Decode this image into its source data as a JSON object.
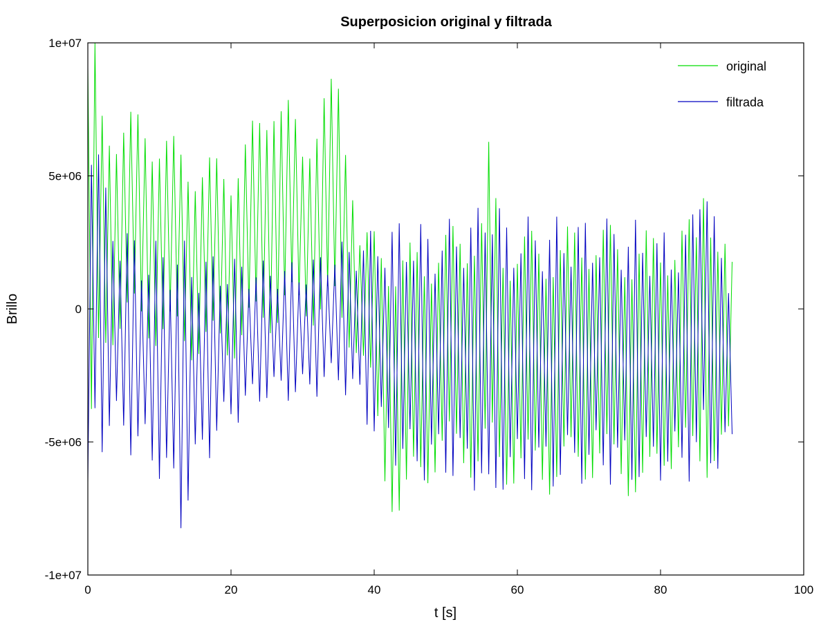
{
  "chart_data": {
    "type": "line",
    "title": "Superposicion original y filtrada",
    "xlabel": "t [s]",
    "ylabel": "Brillo",
    "xlim": [
      0,
      100
    ],
    "ylim": [
      -10000000,
      10000000
    ],
    "x_ticks": [
      0,
      20,
      40,
      60,
      80,
      100
    ],
    "x_tick_labels": [
      "0",
      "20",
      "40",
      "60",
      "80",
      "100"
    ],
    "y_ticks": [
      -10000000,
      -5000000,
      0,
      5000000,
      10000000
    ],
    "y_tick_labels": [
      "-1e+07",
      "-5e+06",
      "0",
      "5e+06",
      "1e+07"
    ],
    "grid": false,
    "legend_position": "top-right",
    "x_sampling": {
      "start": 0,
      "step": 0.5,
      "end": 90
    },
    "series": [
      {
        "name": "original",
        "color": "#00dd00",
        "envelope_low": [
          [
            0,
            -10000000
          ],
          [
            1,
            -4000000
          ],
          [
            2,
            -2500000
          ],
          [
            3,
            -1500000
          ],
          [
            5,
            -1000000
          ],
          [
            10,
            -1500000
          ],
          [
            15,
            -2000000
          ],
          [
            20,
            -2000000
          ],
          [
            25,
            -1000000
          ],
          [
            30,
            -500000
          ],
          [
            35,
            -1000000
          ],
          [
            38,
            -2000000
          ],
          [
            40,
            -4000000
          ],
          [
            41,
            -6500000
          ],
          [
            44,
            -8800000
          ],
          [
            46,
            -7000000
          ],
          [
            50,
            -6000000
          ],
          [
            55,
            -6500000
          ],
          [
            60,
            -6800000
          ],
          [
            65,
            -7000000
          ],
          [
            70,
            -6500000
          ],
          [
            75,
            -6800000
          ],
          [
            78,
            -8200000
          ],
          [
            80,
            -6000000
          ],
          [
            85,
            -6500000
          ],
          [
            90,
            -6000000
          ]
        ],
        "envelope_high": [
          [
            0,
            10000000
          ],
          [
            1,
            10000000
          ],
          [
            2,
            8000000
          ],
          [
            4,
            7500000
          ],
          [
            8,
            7500000
          ],
          [
            12,
            6500000
          ],
          [
            16,
            5800000
          ],
          [
            20,
            5800000
          ],
          [
            24,
            7500000
          ],
          [
            26,
            9000000
          ],
          [
            28,
            8000000
          ],
          [
            30,
            6500000
          ],
          [
            33,
            8500000
          ],
          [
            35,
            8800000
          ],
          [
            37,
            5500000
          ],
          [
            38,
            3000000
          ],
          [
            40,
            3000000
          ],
          [
            45,
            2500000
          ],
          [
            50,
            3000000
          ],
          [
            55,
            4000000
          ],
          [
            56,
            6300000
          ],
          [
            58,
            3000000
          ],
          [
            62,
            3000000
          ],
          [
            66,
            3000000
          ],
          [
            70,
            3500000
          ],
          [
            75,
            3000000
          ],
          [
            80,
            3000000
          ],
          [
            85,
            3500000
          ],
          [
            86,
            6500000
          ],
          [
            88,
            3000000
          ],
          [
            90,
            2000000
          ]
        ]
      },
      {
        "name": "filtrada",
        "color": "#0000c0",
        "envelope_low": [
          [
            0,
            -10000000
          ],
          [
            0.5,
            -10000000
          ],
          [
            1,
            -6000000
          ],
          [
            3,
            -5000000
          ],
          [
            6,
            -5500000
          ],
          [
            10,
            -6500000
          ],
          [
            13,
            -8500000
          ],
          [
            16,
            -6000000
          ],
          [
            20,
            -4500000
          ],
          [
            25,
            -3500000
          ],
          [
            30,
            -3500000
          ],
          [
            35,
            -3000000
          ],
          [
            38,
            -4000000
          ],
          [
            40,
            -5000000
          ],
          [
            45,
            -6500000
          ],
          [
            50,
            -6500000
          ],
          [
            55,
            -7000000
          ],
          [
            56,
            -9200000
          ],
          [
            58,
            -6800000
          ],
          [
            62,
            -7000000
          ],
          [
            66,
            -6800000
          ],
          [
            70,
            -6500000
          ],
          [
            75,
            -6800000
          ],
          [
            80,
            -6500000
          ],
          [
            85,
            -6500000
          ],
          [
            90,
            -6000000
          ]
        ],
        "envelope_high": [
          [
            0,
            10000000
          ],
          [
            1,
            8500000
          ],
          [
            2,
            5000000
          ],
          [
            4,
            3500000
          ],
          [
            8,
            2500000
          ],
          [
            12,
            2800000
          ],
          [
            16,
            2200000
          ],
          [
            20,
            2000000
          ],
          [
            25,
            1800000
          ],
          [
            30,
            1800000
          ],
          [
            35,
            2500000
          ],
          [
            38,
            2800000
          ],
          [
            40,
            3000000
          ],
          [
            44,
            3500000
          ],
          [
            48,
            3200000
          ],
          [
            52,
            3500000
          ],
          [
            55,
            4000000
          ],
          [
            56,
            5800000
          ],
          [
            58,
            3500000
          ],
          [
            62,
            3500000
          ],
          [
            66,
            3500000
          ],
          [
            70,
            3500000
          ],
          [
            75,
            3500000
          ],
          [
            80,
            3000000
          ],
          [
            84,
            3000000
          ],
          [
            86,
            7200000
          ],
          [
            87,
            4000000
          ],
          [
            88,
            3000000
          ],
          [
            90,
            2000000
          ]
        ]
      }
    ]
  }
}
